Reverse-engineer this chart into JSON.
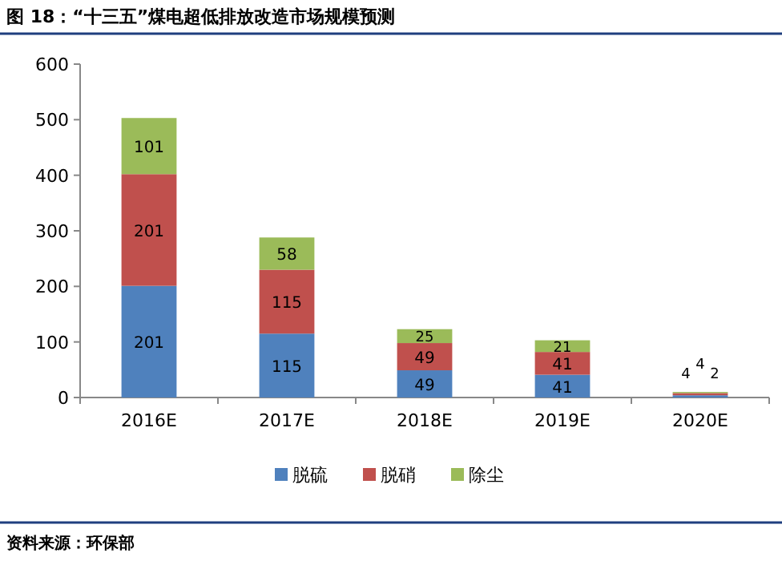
{
  "chart_data": {
    "type": "bar",
    "title": "图 18：“十三五”煤电超低排放改造市场规模预测",
    "categories": [
      "2016E",
      "2017E",
      "2018E",
      "2019E",
      "2020E"
    ],
    "series": [
      {
        "name": "脱硫",
        "color": "#4f81bd",
        "values": [
          201,
          115,
          49,
          41,
          4
        ]
      },
      {
        "name": "脱硝",
        "color": "#c0504d",
        "values": [
          201,
          115,
          49,
          41,
          4
        ]
      },
      {
        "name": "除尘",
        "color": "#9bbb59",
        "values": [
          101,
          58,
          25,
          21,
          2
        ]
      }
    ],
    "stacked": true,
    "ylim": [
      0,
      600
    ],
    "yticks": [
      0,
      100,
      200,
      300,
      400,
      500,
      600
    ],
    "data_labels": true,
    "legend": "bottom",
    "grid": false,
    "annotations": [
      "资料来源：环保部"
    ]
  }
}
